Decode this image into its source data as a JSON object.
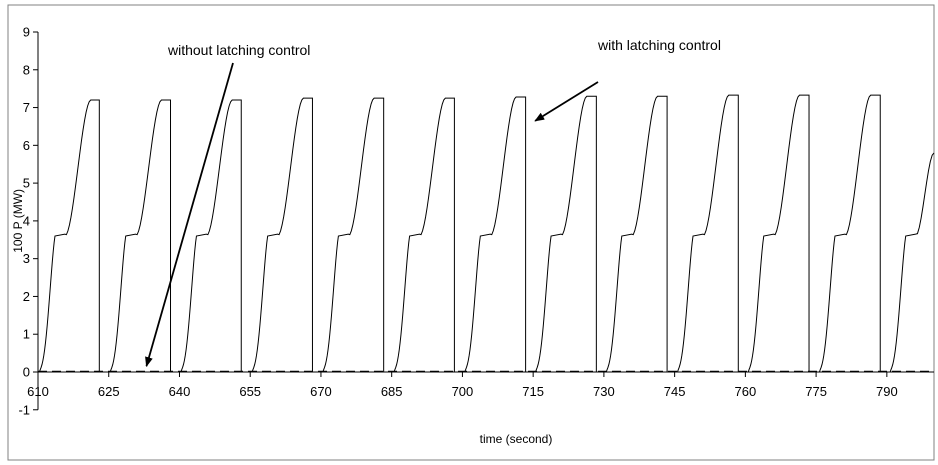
{
  "chart_data": {
    "type": "line",
    "title": "",
    "xlabel": "time (second)",
    "ylabel": "100 P (MW)",
    "xlim": [
      610,
      800
    ],
    "ylim": [
      -1,
      9
    ],
    "x_ticks": [
      610,
      625,
      640,
      655,
      670,
      685,
      700,
      715,
      730,
      745,
      760,
      775,
      790
    ],
    "y_ticks": [
      -1,
      0,
      1,
      2,
      3,
      4,
      5,
      6,
      7,
      8,
      9
    ],
    "grid": false,
    "legend": "none",
    "series": [
      {
        "name": "with latching control",
        "style": "solid",
        "cycles": [
          {
            "start": 610.3,
            "end": 623.0,
            "peak": 7.2
          },
          {
            "start": 625.3,
            "end": 638.1,
            "peak": 7.2
          },
          {
            "start": 640.3,
            "end": 653.1,
            "peak": 7.2
          },
          {
            "start": 655.4,
            "end": 668.2,
            "peak": 7.25
          },
          {
            "start": 670.4,
            "end": 683.3,
            "peak": 7.25
          },
          {
            "start": 685.5,
            "end": 698.3,
            "peak": 7.25
          },
          {
            "start": 700.5,
            "end": 713.4,
            "peak": 7.28
          },
          {
            "start": 715.5,
            "end": 728.4,
            "peak": 7.3
          },
          {
            "start": 730.5,
            "end": 743.4,
            "peak": 7.3
          },
          {
            "start": 745.6,
            "end": 758.5,
            "peak": 7.33
          },
          {
            "start": 760.6,
            "end": 773.5,
            "peak": 7.33
          },
          {
            "start": 775.7,
            "end": 788.6,
            "peak": 7.33
          }
        ],
        "last_rise": {
          "start": 790.7,
          "end_x": 800,
          "end_y": 5.8
        },
        "plateau": 3.6
      },
      {
        "name": "without latching control",
        "style": "dashed",
        "x": [
          610,
          800
        ],
        "y": [
          0,
          0
        ]
      }
    ],
    "annotations": [
      {
        "text": "without latching control",
        "arrow_to": [
          633,
          0.05
        ]
      },
      {
        "text": "with latching control",
        "arrow_to": [
          715,
          6.7
        ]
      }
    ]
  }
}
